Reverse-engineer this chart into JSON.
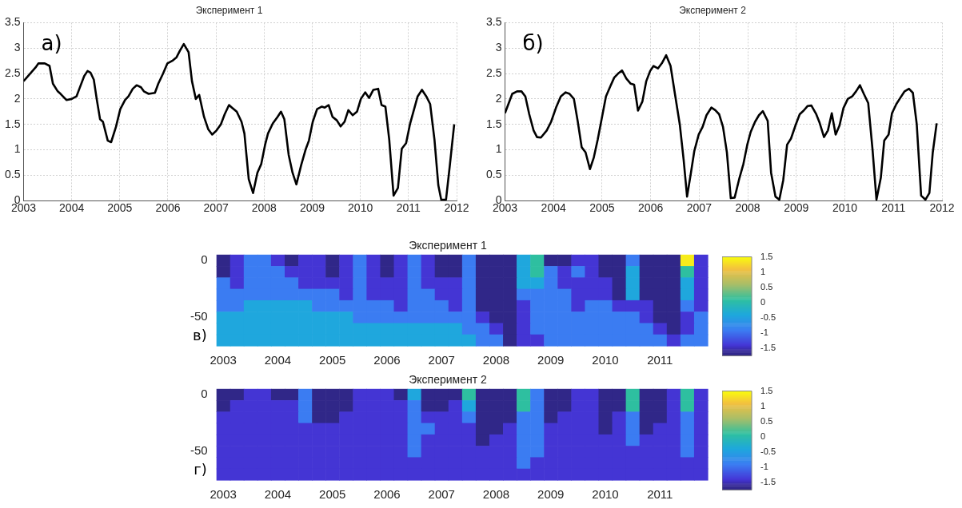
{
  "chart_data": [
    {
      "type": "line",
      "title": "Эксперимент 1",
      "annotations": [
        "а)"
      ],
      "xlim": [
        2003,
        2012
      ],
      "xticks": [
        2003,
        2004,
        2005,
        2006,
        2007,
        2008,
        2009,
        2010,
        2011,
        2012
      ],
      "ylim": [
        0,
        3.5
      ],
      "yticks": [
        0,
        0.5,
        1,
        1.5,
        2,
        2.5,
        3,
        3.5
      ],
      "grid": true,
      "color": "#000000",
      "x": [
        2003.0,
        2003.25,
        2003.31,
        2003.44,
        2003.54,
        2003.61,
        2003.71,
        2003.77,
        2003.89,
        2004.0,
        2004.1,
        2004.16,
        2004.26,
        2004.33,
        2004.39,
        2004.46,
        2004.52,
        2004.59,
        2004.65,
        2004.75,
        2004.82,
        2004.92,
        2005.01,
        2005.11,
        2005.18,
        2005.27,
        2005.35,
        2005.44,
        2005.5,
        2005.6,
        2005.73,
        2005.8,
        2005.9,
        2005.99,
        2006.09,
        2006.18,
        2006.25,
        2006.33,
        2006.43,
        2006.5,
        2006.58,
        2006.65,
        2006.75,
        2006.84,
        2006.92,
        2007.01,
        2007.1,
        2007.18,
        2007.27,
        2007.33,
        2007.43,
        2007.53,
        2007.59,
        2007.68,
        2007.77,
        2007.86,
        2007.94,
        2008.02,
        2008.08,
        2008.18,
        2008.28,
        2008.35,
        2008.42,
        2008.51,
        2008.59,
        2008.67,
        2008.77,
        2008.86,
        2008.93,
        2009.01,
        2009.1,
        2009.2,
        2009.26,
        2009.34,
        2009.42,
        2009.51,
        2009.59,
        2009.67,
        2009.75,
        2009.84,
        2009.93,
        2010.01,
        2010.1,
        2010.18,
        2010.27,
        2010.37,
        2010.44,
        2010.52,
        2010.6,
        2010.69,
        2010.78,
        2010.86,
        2010.95,
        2011.03,
        2011.19,
        2011.28,
        2011.37,
        2011.45,
        2011.54,
        2011.62,
        2011.68,
        2011.78,
        2011.86,
        2011.95
      ],
      "values": [
        2.35,
        2.62,
        2.7,
        2.7,
        2.65,
        2.3,
        2.15,
        2.1,
        1.98,
        2.0,
        2.05,
        2.2,
        2.45,
        2.55,
        2.52,
        2.38,
        2.0,
        1.6,
        1.55,
        1.18,
        1.15,
        1.45,
        1.8,
        1.98,
        2.05,
        2.2,
        2.27,
        2.23,
        2.15,
        2.1,
        2.12,
        2.3,
        2.5,
        2.7,
        2.75,
        2.82,
        2.95,
        3.08,
        2.92,
        2.35,
        2.0,
        2.08,
        1.65,
        1.4,
        1.3,
        1.38,
        1.5,
        1.7,
        1.88,
        1.83,
        1.75,
        1.55,
        1.32,
        0.42,
        0.15,
        0.55,
        0.72,
        1.1,
        1.32,
        1.52,
        1.65,
        1.75,
        1.6,
        0.9,
        0.55,
        0.32,
        0.7,
        1.0,
        1.18,
        1.55,
        1.8,
        1.85,
        1.83,
        1.88,
        1.65,
        1.58,
        1.46,
        1.55,
        1.78,
        1.68,
        1.75,
        2.0,
        2.13,
        2.02,
        2.18,
        2.2,
        1.88,
        1.85,
        1.2,
        0.1,
        0.25,
        1.02,
        1.13,
        1.5,
        2.05,
        2.18,
        2.05,
        1.9,
        1.2,
        0.3,
        0.02,
        0.02,
        0.7,
        1.5
      ]
    },
    {
      "type": "line",
      "title": "Эксперимент 2",
      "annotations": [
        "б)"
      ],
      "xlim": [
        2003,
        2012
      ],
      "xticks": [
        2003,
        2004,
        2005,
        2006,
        2007,
        2008,
        2009,
        2010,
        2011,
        2012
      ],
      "ylim": [
        0,
        3.5
      ],
      "yticks": [
        0,
        0.5,
        1,
        1.5,
        2,
        2.5,
        3,
        3.5
      ],
      "grid": true,
      "color": "#000000",
      "x": [
        2003.0,
        2003.15,
        2003.25,
        2003.34,
        2003.42,
        2003.5,
        2003.59,
        2003.66,
        2003.74,
        2003.86,
        2003.95,
        2004.06,
        2004.15,
        2004.25,
        2004.33,
        2004.42,
        2004.5,
        2004.58,
        2004.66,
        2004.75,
        2004.83,
        2004.91,
        2005.01,
        2005.08,
        2005.17,
        2005.25,
        2005.33,
        2005.41,
        2005.5,
        2005.59,
        2005.66,
        2005.74,
        2005.83,
        2005.91,
        2005.99,
        2006.06,
        2006.15,
        2006.23,
        2006.32,
        2006.41,
        2006.5,
        2006.6,
        2006.68,
        2006.75,
        2006.83,
        2006.9,
        2006.99,
        2007.07,
        2007.15,
        2007.25,
        2007.33,
        2007.41,
        2007.49,
        2007.57,
        2007.65,
        2007.73,
        2007.83,
        2007.91,
        2007.99,
        2008.06,
        2008.15,
        2008.23,
        2008.31,
        2008.41,
        2008.48,
        2008.57,
        2008.65,
        2008.73,
        2008.81,
        2008.89,
        2008.99,
        2009.07,
        2009.15,
        2009.23,
        2009.31,
        2009.41,
        2009.48,
        2009.57,
        2009.65,
        2009.73,
        2009.81,
        2009.89,
        2009.97,
        2010.06,
        2010.15,
        2010.23,
        2010.31,
        2010.39,
        2010.48,
        2010.57,
        2010.65,
        2010.74,
        2010.81,
        2010.9,
        2010.97,
        2011.06,
        2011.14,
        2011.23,
        2011.32,
        2011.4,
        2011.48,
        2011.57,
        2011.66,
        2011.74,
        2011.81,
        2011.89
      ],
      "values": [
        1.72,
        2.1,
        2.15,
        2.15,
        2.05,
        1.7,
        1.38,
        1.25,
        1.24,
        1.38,
        1.55,
        1.85,
        2.05,
        2.13,
        2.1,
        2.0,
        1.55,
        1.05,
        0.95,
        0.62,
        0.85,
        1.2,
        1.7,
        2.05,
        2.25,
        2.42,
        2.5,
        2.56,
        2.4,
        2.3,
        2.28,
        1.77,
        1.95,
        2.35,
        2.55,
        2.65,
        2.6,
        2.7,
        2.86,
        2.65,
        2.1,
        1.5,
        0.8,
        0.08,
        0.55,
        0.98,
        1.3,
        1.45,
        1.68,
        1.83,
        1.78,
        1.7,
        1.45,
        0.95,
        0.05,
        0.06,
        0.45,
        0.72,
        1.1,
        1.35,
        1.55,
        1.68,
        1.76,
        1.57,
        0.55,
        0.08,
        0.02,
        0.4,
        1.1,
        1.22,
        1.5,
        1.7,
        1.77,
        1.86,
        1.87,
        1.7,
        1.53,
        1.25,
        1.38,
        1.72,
        1.3,
        1.48,
        1.82,
        2.0,
        2.05,
        2.15,
        2.27,
        2.1,
        1.92,
        1.0,
        0.02,
        0.45,
        1.18,
        1.3,
        1.72,
        1.9,
        2.02,
        2.15,
        2.2,
        2.12,
        1.5,
        0.1,
        0.02,
        0.15,
        0.95,
        1.52
      ]
    },
    {
      "type": "heatmap",
      "title": "Эксперимент 1",
      "annotations": [
        "в)"
      ],
      "clim": [
        -1.75,
        1.5
      ],
      "cticks": [
        -1.5,
        -1,
        -0.5,
        0,
        0.5,
        1,
        1.5
      ],
      "categories": [
        "2003",
        null,
        null,
        null,
        "2004",
        null,
        null,
        null,
        "2005",
        null,
        null,
        null,
        "2006",
        null,
        null,
        null,
        "2007",
        null,
        null,
        null,
        "2008",
        null,
        null,
        null,
        "2009",
        null,
        null,
        null,
        "2010",
        null,
        null,
        null,
        "2011",
        null,
        null,
        null
      ],
      "y_categories": [
        "0",
        null,
        null,
        null,
        null,
        "-50",
        null,
        null
      ],
      "cells": [
        [
          -1.7,
          -1.4,
          -0.9,
          -0.9,
          -1.4,
          -1.7,
          -1.4,
          -1.4,
          -1.7,
          -1.4,
          -0.9,
          -1.4,
          -1.7,
          -1.4,
          -0.9,
          -1.4,
          -1.7,
          -1.7,
          -0.9,
          -1.7,
          -1.7,
          -1.7,
          -0.4,
          0.1,
          -1.7,
          -1.7,
          -1.4,
          -1.4,
          -1.7,
          -1.7,
          -0.9,
          -1.7,
          -1.7,
          -1.7,
          1.4,
          -1.4
        ],
        [
          -1.7,
          -1.4,
          -0.9,
          -0.9,
          -0.9,
          -1.4,
          -1.4,
          -1.4,
          -1.7,
          -1.4,
          -0.9,
          -1.4,
          -1.7,
          -1.4,
          -0.9,
          -1.4,
          -1.7,
          -1.7,
          -0.9,
          -1.7,
          -1.7,
          -1.7,
          -0.4,
          0.1,
          -0.9,
          -1.4,
          -0.9,
          -1.4,
          -1.7,
          -1.7,
          -0.4,
          -1.7,
          -1.7,
          -1.7,
          0.1,
          -1.4
        ],
        [
          -0.9,
          -1.4,
          -0.9,
          -0.9,
          -0.9,
          -0.9,
          -1.4,
          -1.4,
          -1.4,
          -1.4,
          -0.9,
          -1.4,
          -1.4,
          -1.4,
          -0.9,
          -1.4,
          -1.4,
          -1.4,
          -0.9,
          -1.7,
          -1.7,
          -1.7,
          -0.4,
          -0.4,
          -0.9,
          -1.4,
          -1.4,
          -1.4,
          -1.4,
          -1.7,
          -0.4,
          -1.7,
          -1.7,
          -1.7,
          -0.4,
          -1.4
        ],
        [
          -0.9,
          -0.9,
          -0.9,
          -0.9,
          -0.9,
          -0.9,
          -0.9,
          -0.9,
          -0.9,
          -1.4,
          -0.9,
          -1.4,
          -1.4,
          -1.4,
          -0.9,
          -0.9,
          -1.4,
          -1.4,
          -0.9,
          -1.7,
          -1.7,
          -1.7,
          -0.9,
          -0.9,
          -0.9,
          -0.9,
          -1.4,
          -1.4,
          -1.4,
          -1.7,
          -0.4,
          -1.7,
          -1.7,
          -1.7,
          -0.4,
          -1.4
        ],
        [
          -0.9,
          -0.9,
          -0.4,
          -0.4,
          -0.4,
          -0.4,
          -0.4,
          -0.9,
          -0.9,
          -0.9,
          -0.9,
          -0.9,
          -0.9,
          -1.4,
          -0.9,
          -0.9,
          -0.9,
          -1.4,
          -0.9,
          -1.7,
          -1.7,
          -1.7,
          -1.4,
          -0.9,
          -0.9,
          -0.9,
          -1.4,
          -0.9,
          -0.9,
          -1.4,
          -1.4,
          -1.4,
          -1.7,
          -1.7,
          -0.9,
          -1.4
        ],
        [
          -0.4,
          -0.4,
          -0.4,
          -0.4,
          -0.4,
          -0.4,
          -0.4,
          -0.4,
          -0.4,
          -0.4,
          -0.9,
          -0.9,
          -0.9,
          -0.9,
          -0.9,
          -0.9,
          -0.9,
          -0.9,
          -0.9,
          -1.4,
          -1.7,
          -1.7,
          -1.4,
          -0.9,
          -0.9,
          -0.9,
          -0.9,
          -0.9,
          -0.9,
          -0.9,
          -0.9,
          -1.4,
          -1.7,
          -1.7,
          -1.4,
          -0.9
        ],
        [
          -0.4,
          -0.4,
          -0.4,
          -0.4,
          -0.4,
          -0.4,
          -0.4,
          -0.4,
          -0.4,
          -0.4,
          -0.4,
          -0.4,
          -0.4,
          -0.4,
          -0.4,
          -0.4,
          -0.4,
          -0.4,
          -0.9,
          -0.9,
          -1.4,
          -1.7,
          -1.4,
          -0.9,
          -0.9,
          -0.9,
          -0.9,
          -0.9,
          -0.9,
          -0.9,
          -0.9,
          -0.9,
          -1.4,
          -1.7,
          -1.4,
          -0.9
        ],
        [
          -0.4,
          -0.4,
          -0.4,
          -0.4,
          -0.4,
          -0.4,
          -0.4,
          -0.4,
          -0.4,
          -0.4,
          -0.4,
          -0.4,
          -0.4,
          -0.4,
          -0.4,
          -0.4,
          -0.4,
          -0.4,
          -0.4,
          -0.9,
          -0.9,
          -1.7,
          -1.4,
          -1.4,
          -0.9,
          -0.9,
          -0.9,
          -0.9,
          -0.9,
          -0.9,
          -0.9,
          -0.9,
          -0.9,
          -1.4,
          -0.9,
          -0.9
        ]
      ]
    },
    {
      "type": "heatmap",
      "title": "Эксперимент 2",
      "annotations": [
        "г)"
      ],
      "clim": [
        -1.75,
        1.5
      ],
      "cticks": [
        -1.5,
        -1,
        -0.5,
        0,
        0.5,
        1,
        1.5
      ],
      "categories": [
        "2003",
        null,
        null,
        null,
        "2004",
        null,
        null,
        null,
        "2005",
        null,
        null,
        null,
        "2006",
        null,
        null,
        null,
        "2007",
        null,
        null,
        null,
        "2008",
        null,
        null,
        null,
        "2009",
        null,
        null,
        null,
        "2010",
        null,
        null,
        null,
        "2011",
        null,
        null,
        null
      ],
      "y_categories": [
        "0",
        null,
        null,
        null,
        null,
        "-50",
        null,
        null
      ],
      "cells": [
        [
          -1.7,
          -1.7,
          -1.4,
          -1.4,
          -1.7,
          -1.7,
          -0.9,
          -1.7,
          -1.7,
          -1.7,
          -1.4,
          -1.4,
          -1.4,
          -1.7,
          -0.4,
          -1.7,
          -1.7,
          -1.7,
          0.1,
          -1.7,
          -1.7,
          -1.7,
          0.1,
          -0.9,
          -1.7,
          -1.7,
          -1.4,
          -1.4,
          -1.7,
          -1.7,
          0.1,
          -1.7,
          -1.7,
          -1.4,
          0.1,
          -1.4
        ],
        [
          -1.7,
          -1.4,
          -1.4,
          -1.4,
          -1.4,
          -1.4,
          -0.9,
          -1.7,
          -1.7,
          -1.7,
          -1.4,
          -1.4,
          -1.4,
          -1.4,
          -0.9,
          -1.7,
          -1.7,
          -1.4,
          -0.4,
          -1.7,
          -1.7,
          -1.7,
          0.1,
          -0.9,
          -1.7,
          -1.7,
          -1.4,
          -1.4,
          -1.7,
          -1.7,
          0.1,
          -1.7,
          -1.7,
          -1.4,
          0.1,
          -1.4
        ],
        [
          -1.4,
          -1.4,
          -1.4,
          -1.4,
          -1.4,
          -1.4,
          -0.9,
          -1.7,
          -1.7,
          -1.4,
          -1.4,
          -1.4,
          -1.4,
          -1.4,
          -0.9,
          -1.4,
          -1.4,
          -1.4,
          -0.9,
          -1.7,
          -1.7,
          -1.7,
          -0.9,
          -0.9,
          -1.7,
          -1.4,
          -1.4,
          -1.4,
          -1.7,
          -1.4,
          -0.9,
          -1.7,
          -1.7,
          -1.4,
          -0.9,
          -1.4
        ],
        [
          -1.4,
          -1.4,
          -1.4,
          -1.4,
          -1.4,
          -1.4,
          -1.4,
          -1.4,
          -1.4,
          -1.4,
          -1.4,
          -1.4,
          -1.4,
          -1.4,
          -0.9,
          -0.9,
          -1.4,
          -1.4,
          -1.4,
          -1.7,
          -1.7,
          -1.4,
          -0.9,
          -0.9,
          -1.4,
          -1.4,
          -1.4,
          -1.4,
          -1.7,
          -1.4,
          -0.9,
          -1.7,
          -1.4,
          -1.4,
          -0.9,
          -1.4
        ],
        [
          -1.4,
          -1.4,
          -1.4,
          -1.4,
          -1.4,
          -1.4,
          -1.4,
          -1.4,
          -1.4,
          -1.4,
          -1.4,
          -1.4,
          -1.4,
          -1.4,
          -0.9,
          -1.4,
          -1.4,
          -1.4,
          -1.4,
          -1.7,
          -1.4,
          -1.4,
          -0.9,
          -0.9,
          -1.4,
          -1.4,
          -1.4,
          -1.4,
          -1.4,
          -1.4,
          -0.9,
          -1.4,
          -1.4,
          -1.4,
          -0.9,
          -1.4
        ],
        [
          -1.4,
          -1.4,
          -1.4,
          -1.4,
          -1.4,
          -1.4,
          -1.4,
          -1.4,
          -1.4,
          -1.4,
          -1.4,
          -1.4,
          -1.4,
          -1.4,
          -0.9,
          -1.4,
          -1.4,
          -1.4,
          -1.4,
          -1.4,
          -1.4,
          -1.4,
          -0.9,
          -0.9,
          -1.4,
          -1.4,
          -1.4,
          -1.4,
          -1.4,
          -1.4,
          -1.4,
          -1.4,
          -1.4,
          -1.4,
          -0.9,
          -1.4
        ],
        [
          -1.4,
          -1.4,
          -1.4,
          -1.4,
          -1.4,
          -1.4,
          -1.4,
          -1.4,
          -1.4,
          -1.4,
          -1.4,
          -1.4,
          -1.4,
          -1.4,
          -1.4,
          -1.4,
          -1.4,
          -1.4,
          -1.4,
          -1.4,
          -1.4,
          -1.4,
          -0.9,
          -1.4,
          -1.4,
          -1.4,
          -1.4,
          -1.4,
          -1.4,
          -1.4,
          -1.4,
          -1.4,
          -1.4,
          -1.4,
          -1.4,
          -1.4
        ],
        [
          -1.4,
          -1.4,
          -1.4,
          -1.4,
          -1.4,
          -1.4,
          -1.4,
          -1.4,
          -1.4,
          -1.4,
          -1.4,
          -1.4,
          -1.4,
          -1.4,
          -1.4,
          -1.4,
          -1.4,
          -1.4,
          -1.4,
          -1.4,
          -1.4,
          -1.4,
          -1.4,
          -1.4,
          -1.4,
          -1.4,
          -1.4,
          -1.4,
          -1.4,
          -1.4,
          -1.4,
          -1.4,
          -1.4,
          -1.4,
          -1.4,
          -1.4
        ]
      ]
    }
  ]
}
